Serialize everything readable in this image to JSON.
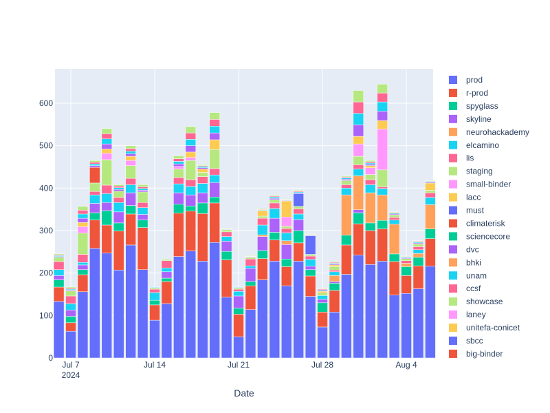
{
  "chart_data": {
    "type": "bar",
    "barmode": "stack",
    "title": "",
    "xlabel": "Date",
    "ylabel": "",
    "ylim": [
      0,
      681
    ],
    "yticks": [
      0,
      100,
      200,
      300,
      400,
      500,
      600
    ],
    "xticks": [
      {
        "date": "2024-07-07",
        "label": "Jul 7",
        "sublabel": "2024"
      },
      {
        "date": "2024-07-14",
        "label": "Jul 14",
        "sublabel": ""
      },
      {
        "date": "2024-07-21",
        "label": "Jul 21",
        "sublabel": ""
      },
      {
        "date": "2024-07-28",
        "label": "Jul 28",
        "sublabel": ""
      },
      {
        "date": "2024-08-04",
        "label": "Aug 4",
        "sublabel": ""
      }
    ],
    "grid": true,
    "legend_position": "right",
    "x": [
      "2024-07-06",
      "2024-07-07",
      "2024-07-08",
      "2024-07-09",
      "2024-07-10",
      "2024-07-11",
      "2024-07-12",
      "2024-07-13",
      "2024-07-14",
      "2024-07-15",
      "2024-07-16",
      "2024-07-17",
      "2024-07-18",
      "2024-07-19",
      "2024-07-20",
      "2024-07-21",
      "2024-07-22",
      "2024-07-23",
      "2024-07-24",
      "2024-07-25",
      "2024-07-26",
      "2024-07-27",
      "2024-07-28",
      "2024-07-29",
      "2024-07-30",
      "2024-07-31",
      "2024-08-01",
      "2024-08-02",
      "2024-08-03",
      "2024-08-04",
      "2024-08-05",
      "2024-08-06"
    ],
    "series": [
      {
        "name": "prod",
        "color": "#636efa",
        "values": [
          133,
          63,
          156,
          258,
          247,
          207,
          266,
          208,
          89,
          128,
          239,
          252,
          228,
          272,
          143,
          50,
          114,
          184,
          228,
          170,
          228,
          145,
          73,
          108,
          197,
          242,
          220,
          228,
          148,
          152,
          163,
          216
        ]
      },
      {
        "name": "r-prod",
        "color": "#EF553B",
        "values": [
          34,
          20,
          40,
          67,
          66,
          92,
          73,
          99,
          36,
          52,
          102,
          94,
          112,
          93,
          88,
          53,
          56,
          50,
          50,
          45,
          43,
          48,
          35,
          51,
          69,
          74,
          80,
          76,
          79,
          42,
          54,
          65
        ]
      },
      {
        "name": "spyglass",
        "color": "#00cc96",
        "values": [
          17,
          15,
          12,
          17,
          34,
          19,
          20,
          18,
          11,
          8,
          21,
          12,
          25,
          14,
          20,
          14,
          10,
          19,
          18,
          18,
          29,
          15,
          22,
          17,
          23,
          26,
          18,
          20,
          18,
          21,
          20,
          23
        ]
      },
      {
        "name": "skyline",
        "color": "#ab63fa",
        "values": [
          10,
          15,
          11,
          22,
          19,
          26,
          30,
          13,
          0,
          15,
          27,
          26,
          24,
          34,
          24,
          29,
          31,
          33,
          33,
          34,
          26,
          8,
          8,
          4,
          0,
          7,
          0,
          0,
          0,
          0,
          0,
          0
        ]
      },
      {
        "name": "neurohackademy",
        "color": "#FFA15A",
        "values": [
          0,
          0,
          0,
          0,
          0,
          0,
          0,
          0,
          0,
          0,
          0,
          0,
          0,
          0,
          0,
          0,
          0,
          4,
          0,
          9,
          0,
          0,
          0,
          14,
          95,
          80,
          71,
          60,
          70,
          8,
          9,
          57
        ]
      },
      {
        "name": "elcamino",
        "color": "#19d3f3",
        "values": [
          14,
          15,
          6,
          20,
          21,
          22,
          19,
          16,
          18,
          9,
          21,
          20,
          22,
          18,
          11,
          11,
          6,
          23,
          23,
          19,
          13,
          16,
          9,
          9,
          16,
          16,
          19,
          15,
          10,
          0,
          9,
          17
        ]
      },
      {
        "name": "lis",
        "color": "#FF6692",
        "values": [
          19,
          18,
          19,
          8,
          20,
          12,
          15,
          12,
          8,
          17,
          15,
          16,
          16,
          15,
          11,
          5,
          16,
          16,
          13,
          10,
          12,
          8,
          0,
          4,
          8,
          10,
          12,
          4,
          6,
          6,
          7,
          11
        ]
      },
      {
        "name": "staging",
        "color": "#B6E880",
        "values": [
          10,
          12,
          50,
          20,
          60,
          15,
          30,
          25,
          3,
          3,
          20,
          45,
          10,
          45,
          5,
          3,
          4,
          5,
          8,
          5,
          6,
          4,
          6,
          8,
          10,
          20,
          12,
          40,
          6,
          5,
          7,
          6
        ]
      },
      {
        "name": "small-binder",
        "color": "#FF97FF",
        "values": [
          0,
          0,
          15,
          0,
          15,
          0,
          12,
          0,
          0,
          0,
          6,
          7,
          0,
          0,
          0,
          0,
          0,
          0,
          0,
          22,
          0,
          0,
          0,
          0,
          0,
          29,
          16,
          96,
          0,
          0,
          0,
          0
        ]
      },
      {
        "name": "lacc",
        "color": "#FECB52",
        "values": [
          0,
          0,
          10,
          0,
          10,
          0,
          10,
          0,
          0,
          0,
          0,
          13,
          8,
          23,
          0,
          0,
          0,
          13,
          0,
          38,
          0,
          0,
          4,
          4,
          0,
          18,
          5,
          20,
          0,
          0,
          0,
          17
        ]
      },
      {
        "name": "must",
        "color": "#636efa",
        "values": [
          0,
          0,
          0,
          0,
          0,
          0,
          0,
          0,
          0,
          0,
          0,
          0,
          0,
          0,
          0,
          0,
          0,
          0,
          0,
          0,
          30,
          44,
          0,
          0,
          0,
          0,
          0,
          0,
          0,
          0,
          0,
          0
        ]
      },
      {
        "name": "climaterisk",
        "color": "#EF553B",
        "values": [
          0,
          0,
          0,
          37,
          0,
          0,
          0,
          0,
          0,
          0,
          0,
          0,
          0,
          0,
          0,
          0,
          0,
          0,
          0,
          0,
          0,
          0,
          0,
          0,
          0,
          0,
          0,
          0,
          0,
          0,
          0,
          0
        ]
      },
      {
        "name": "sciencecore",
        "color": "#00cc96",
        "values": [
          0,
          0,
          0,
          0,
          0,
          0,
          0,
          0,
          0,
          0,
          0,
          0,
          0,
          0,
          0,
          0,
          0,
          0,
          0,
          0,
          0,
          0,
          0,
          0,
          0,
          0,
          0,
          0,
          0,
          0,
          0,
          0
        ]
      },
      {
        "name": "dvc",
        "color": "#ab63fa",
        "values": [
          2,
          2,
          10,
          4,
          12,
          4,
          6,
          4,
          1,
          0,
          6,
          15,
          3,
          16,
          1,
          1,
          1,
          1,
          3,
          1,
          2,
          1,
          2,
          2,
          3,
          27,
          3,
          22,
          2,
          2,
          2,
          2
        ]
      },
      {
        "name": "bhki",
        "color": "#FFA15A",
        "values": [
          0,
          0,
          0,
          0,
          0,
          0,
          0,
          0,
          0,
          0,
          0,
          0,
          0,
          0,
          0,
          0,
          0,
          0,
          0,
          0,
          0,
          0,
          0,
          0,
          0,
          0,
          0,
          0,
          0,
          0,
          0,
          0
        ]
      },
      {
        "name": "unam",
        "color": "#19d3f3",
        "values": [
          2,
          2,
          10,
          4,
          12,
          4,
          6,
          4,
          1,
          0,
          6,
          15,
          3,
          16,
          1,
          1,
          1,
          1,
          3,
          1,
          2,
          1,
          2,
          2,
          3,
          27,
          3,
          22,
          2,
          2,
          2,
          2
        ]
      },
      {
        "name": "ccsf",
        "color": "#FF6692",
        "values": [
          2,
          2,
          9,
          4,
          12,
          4,
          6,
          4,
          0,
          0,
          6,
          15,
          2,
          16,
          1,
          0,
          1,
          1,
          2,
          1,
          2,
          1,
          2,
          2,
          2,
          27,
          3,
          21,
          2,
          1,
          2,
          1
        ]
      },
      {
        "name": "showcase",
        "color": "#B6E880",
        "values": [
          2,
          3,
          9,
          4,
          12,
          3,
          7,
          5,
          0,
          0,
          7,
          15,
          2,
          16,
          1,
          0,
          1,
          2,
          2,
          1,
          2,
          1,
          1,
          2,
          2,
          27,
          3,
          21,
          1,
          1,
          1,
          1
        ]
      },
      {
        "name": "laney",
        "color": "#FF97FF",
        "values": [
          0,
          0,
          0,
          0,
          0,
          0,
          0,
          0,
          0,
          0,
          0,
          0,
          0,
          0,
          0,
          0,
          0,
          0,
          0,
          0,
          0,
          0,
          0,
          0,
          0,
          0,
          0,
          0,
          0,
          0,
          0,
          0
        ]
      },
      {
        "name": "unitefa-conicet",
        "color": "#FECB52",
        "values": [
          0,
          0,
          0,
          0,
          0,
          0,
          0,
          0,
          0,
          0,
          0,
          0,
          0,
          0,
          0,
          0,
          0,
          0,
          0,
          0,
          0,
          0,
          0,
          0,
          0,
          0,
          0,
          0,
          0,
          0,
          0,
          0
        ]
      },
      {
        "name": "sbcc",
        "color": "#636efa",
        "values": [
          0,
          0,
          0,
          0,
          0,
          0,
          0,
          0,
          0,
          0,
          0,
          0,
          0,
          0,
          0,
          0,
          0,
          0,
          0,
          0,
          0,
          0,
          0,
          0,
          0,
          0,
          0,
          0,
          0,
          0,
          0,
          0
        ]
      },
      {
        "name": "big-binder",
        "color": "#EF553B",
        "values": [
          0,
          0,
          0,
          0,
          0,
          0,
          0,
          0,
          0,
          0,
          0,
          0,
          0,
          0,
          0,
          0,
          0,
          0,
          0,
          0,
          0,
          0,
          0,
          0,
          0,
          0,
          0,
          0,
          0,
          0,
          0,
          0
        ]
      }
    ]
  }
}
